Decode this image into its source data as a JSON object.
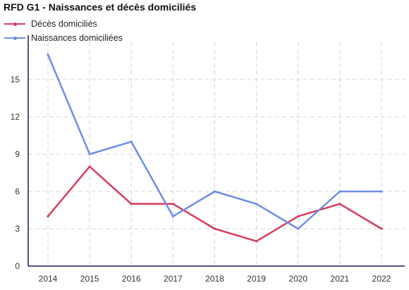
{
  "chart_data": {
    "type": "line",
    "title": "RFD G1 - Naissances et décès domiciliés",
    "xlabel": "",
    "ylabel": "",
    "x": [
      "2014",
      "2015",
      "2016",
      "2017",
      "2018",
      "2019",
      "2020",
      "2021",
      "2022"
    ],
    "yticks": [
      "0",
      "3",
      "6",
      "9",
      "12",
      "15"
    ],
    "ylim": [
      0,
      18
    ],
    "grid": true,
    "legend_position": "top-left",
    "series": [
      {
        "name": "Décès domiciliés",
        "color": "#d63c5e",
        "values": [
          4,
          8,
          5,
          5,
          3,
          2,
          4,
          5,
          3
        ]
      },
      {
        "name": "Naissances domiciliées",
        "color": "#6d8de6",
        "values": [
          17,
          9,
          10,
          4,
          6,
          5,
          3,
          6,
          6
        ]
      }
    ]
  }
}
